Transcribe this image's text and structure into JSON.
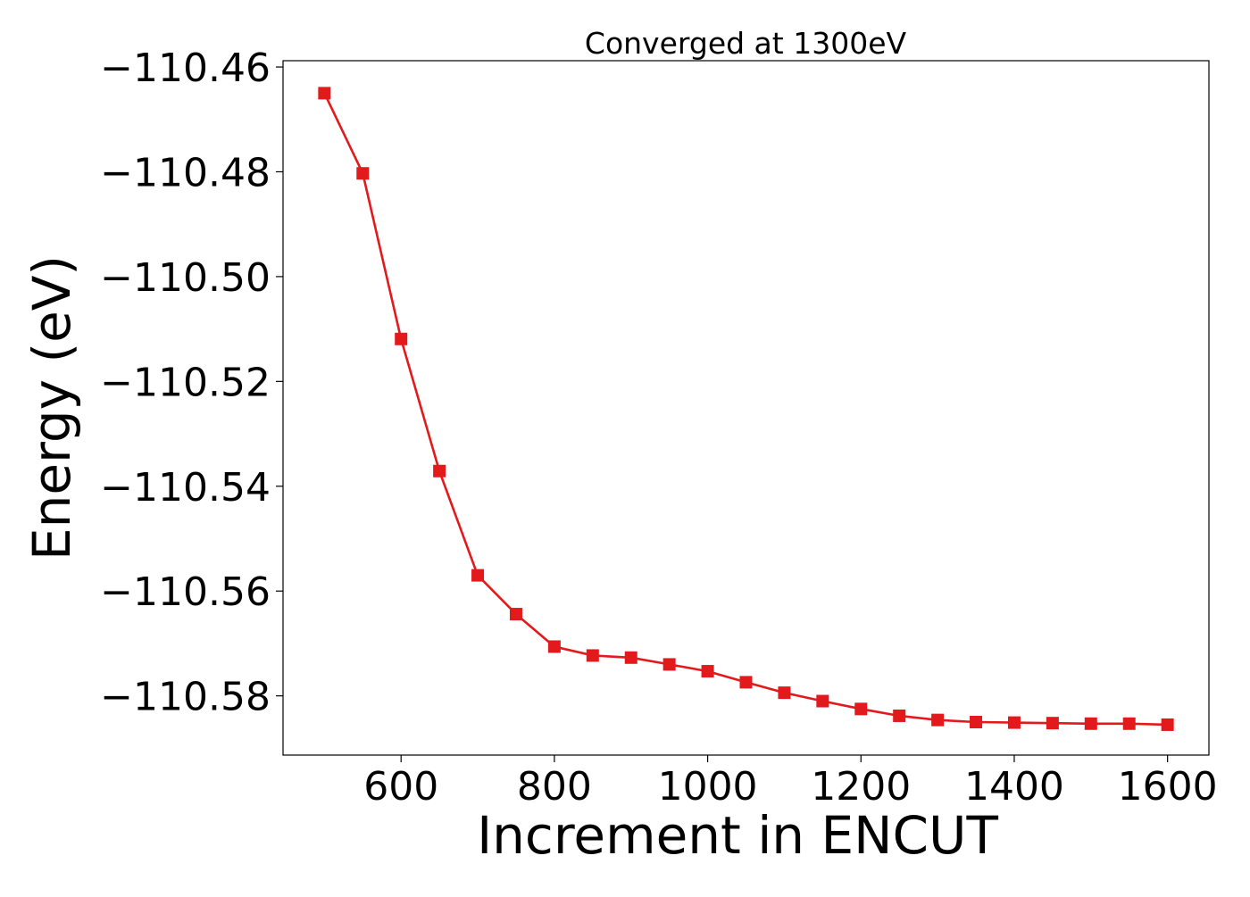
{
  "chart_data": {
    "type": "line",
    "title": "Converged at 1300eV",
    "xlabel": "Increment in ENCUT",
    "ylabel": "Energy (eV)",
    "xlim": [
      446,
      1654
    ],
    "ylim": [
      -110.5913,
      -110.4588
    ],
    "xticks": [
      600,
      800,
      1000,
      1200,
      1400,
      1600
    ],
    "yticks": [
      -110.46,
      -110.48,
      -110.5,
      -110.52,
      -110.54,
      -110.56,
      -110.58
    ],
    "ytick_labels": [
      "−110.46",
      "−110.48",
      "−110.50",
      "−110.52",
      "−110.54",
      "−110.56",
      "−110.58"
    ],
    "grid": false,
    "legend": "none",
    "series": [
      {
        "color": "#e31a1c",
        "marker": "square",
        "x": [
          500,
          550,
          600,
          650,
          700,
          750,
          800,
          850,
          900,
          950,
          1000,
          1050,
          1100,
          1150,
          1200,
          1250,
          1300,
          1350,
          1400,
          1450,
          1500,
          1550,
          1600
        ],
        "y": [
          -110.465,
          -110.4803,
          -110.5119,
          -110.5371,
          -110.557,
          -110.5644,
          -110.5706,
          -110.5723,
          -110.5727,
          -110.574,
          -110.5753,
          -110.5774,
          -110.5794,
          -110.581,
          -110.5825,
          -110.5838,
          -110.5846,
          -110.585,
          -110.5851,
          -110.5852,
          -110.5853,
          -110.5853,
          -110.5855
        ]
      }
    ]
  }
}
